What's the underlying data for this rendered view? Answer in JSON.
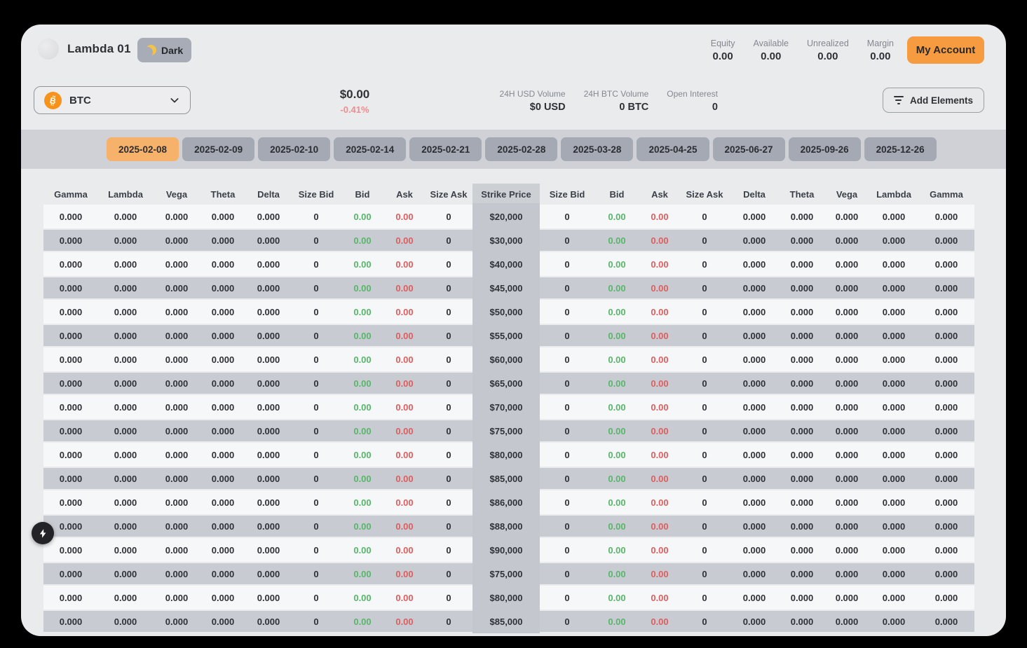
{
  "header": {
    "logo_title": "Lambda 01",
    "theme_toggle": {
      "label": "Dark",
      "icon": "moon-icon"
    },
    "stats": [
      {
        "label": "Equity",
        "value": "0.00"
      },
      {
        "label": "Available",
        "value": "0.00"
      },
      {
        "label": "Unrealized",
        "value": "0.00"
      },
      {
        "label": "Margin",
        "value": "0.00"
      }
    ],
    "account_button_label": "My Account"
  },
  "toolbar": {
    "asset_select": {
      "value": "BTC",
      "icon": "bitcoin-icon",
      "chevron": "chevron-down-icon"
    },
    "price": {
      "value": "$0.00",
      "change": "-0.41%"
    },
    "market_stats": [
      {
        "label": "24H USD Volume",
        "value": "$0 USD"
      },
      {
        "label": "24H BTC Volume",
        "value": "0 BTC"
      },
      {
        "label": "Open Interest",
        "value": "0"
      }
    ],
    "add_elements_button": {
      "label": "Add Elements",
      "icon": "filter-icon"
    }
  },
  "expiry_tabs": {
    "selected": "2025-02-08",
    "items": [
      "2025-02-08",
      "2025-02-09",
      "2025-02-10",
      "2025-02-14",
      "2025-02-21",
      "2025-02-28",
      "2025-03-28",
      "2025-04-25",
      "2025-06-27",
      "2025-09-26",
      "2025-12-26"
    ]
  },
  "options_table": {
    "left_headers": [
      "Gamma",
      "Lambda",
      "Vega",
      "Theta",
      "Delta",
      "Size Bid",
      "Bid",
      "Ask",
      "Size Ask"
    ],
    "center_header": "Strike Price",
    "right_headers": [
      "Size Bid",
      "Bid",
      "Ask",
      "Size Ask",
      "Delta",
      "Theta",
      "Vega",
      "Lambda",
      "Gamma"
    ],
    "rows": [
      {
        "strike": "$20,000",
        "left": [
          "0.000",
          "0.000",
          "0.000",
          "0.000",
          "0.000",
          "0",
          "0.00",
          "0.00",
          "0"
        ],
        "right": [
          "0",
          "0.00",
          "0.00",
          "0",
          "0.000",
          "0.000",
          "0.000",
          "0.000",
          "0.000"
        ]
      },
      {
        "strike": "$30,000",
        "left": [
          "0.000",
          "0.000",
          "0.000",
          "0.000",
          "0.000",
          "0",
          "0.00",
          "0.00",
          "0"
        ],
        "right": [
          "0",
          "0.00",
          "0.00",
          "0",
          "0.000",
          "0.000",
          "0.000",
          "0.000",
          "0.000"
        ]
      },
      {
        "strike": "$40,000",
        "left": [
          "0.000",
          "0.000",
          "0.000",
          "0.000",
          "0.000",
          "0",
          "0.00",
          "0.00",
          "0"
        ],
        "right": [
          "0",
          "0.00",
          "0.00",
          "0",
          "0.000",
          "0.000",
          "0.000",
          "0.000",
          "0.000"
        ]
      },
      {
        "strike": "$45,000",
        "left": [
          "0.000",
          "0.000",
          "0.000",
          "0.000",
          "0.000",
          "0",
          "0.00",
          "0.00",
          "0"
        ],
        "right": [
          "0",
          "0.00",
          "0.00",
          "0",
          "0.000",
          "0.000",
          "0.000",
          "0.000",
          "0.000"
        ]
      },
      {
        "strike": "$50,000",
        "left": [
          "0.000",
          "0.000",
          "0.000",
          "0.000",
          "0.000",
          "0",
          "0.00",
          "0.00",
          "0"
        ],
        "right": [
          "0",
          "0.00",
          "0.00",
          "0",
          "0.000",
          "0.000",
          "0.000",
          "0.000",
          "0.000"
        ]
      },
      {
        "strike": "$55,000",
        "left": [
          "0.000",
          "0.000",
          "0.000",
          "0.000",
          "0.000",
          "0",
          "0.00",
          "0.00",
          "0"
        ],
        "right": [
          "0",
          "0.00",
          "0.00",
          "0",
          "0.000",
          "0.000",
          "0.000",
          "0.000",
          "0.000"
        ]
      },
      {
        "strike": "$60,000",
        "left": [
          "0.000",
          "0.000",
          "0.000",
          "0.000",
          "0.000",
          "0",
          "0.00",
          "0.00",
          "0"
        ],
        "right": [
          "0",
          "0.00",
          "0.00",
          "0",
          "0.000",
          "0.000",
          "0.000",
          "0.000",
          "0.000"
        ]
      },
      {
        "strike": "$65,000",
        "left": [
          "0.000",
          "0.000",
          "0.000",
          "0.000",
          "0.000",
          "0",
          "0.00",
          "0.00",
          "0"
        ],
        "right": [
          "0",
          "0.00",
          "0.00",
          "0",
          "0.000",
          "0.000",
          "0.000",
          "0.000",
          "0.000"
        ]
      },
      {
        "strike": "$70,000",
        "left": [
          "0.000",
          "0.000",
          "0.000",
          "0.000",
          "0.000",
          "0",
          "0.00",
          "0.00",
          "0"
        ],
        "right": [
          "0",
          "0.00",
          "0.00",
          "0",
          "0.000",
          "0.000",
          "0.000",
          "0.000",
          "0.000"
        ]
      },
      {
        "strike": "$75,000",
        "left": [
          "0.000",
          "0.000",
          "0.000",
          "0.000",
          "0.000",
          "0",
          "0.00",
          "0.00",
          "0"
        ],
        "right": [
          "0",
          "0.00",
          "0.00",
          "0",
          "0.000",
          "0.000",
          "0.000",
          "0.000",
          "0.000"
        ]
      },
      {
        "strike": "$80,000",
        "left": [
          "0.000",
          "0.000",
          "0.000",
          "0.000",
          "0.000",
          "0",
          "0.00",
          "0.00",
          "0"
        ],
        "right": [
          "0",
          "0.00",
          "0.00",
          "0",
          "0.000",
          "0.000",
          "0.000",
          "0.000",
          "0.000"
        ]
      },
      {
        "strike": "$85,000",
        "left": [
          "0.000",
          "0.000",
          "0.000",
          "0.000",
          "0.000",
          "0",
          "0.00",
          "0.00",
          "0"
        ],
        "right": [
          "0",
          "0.00",
          "0.00",
          "0",
          "0.000",
          "0.000",
          "0.000",
          "0.000",
          "0.000"
        ]
      },
      {
        "strike": "$86,000",
        "left": [
          "0.000",
          "0.000",
          "0.000",
          "0.000",
          "0.000",
          "0",
          "0.00",
          "0.00",
          "0"
        ],
        "right": [
          "0",
          "0.00",
          "0.00",
          "0",
          "0.000",
          "0.000",
          "0.000",
          "0.000",
          "0.000"
        ]
      },
      {
        "strike": "$88,000",
        "left": [
          "0.000",
          "0.000",
          "0.000",
          "0.000",
          "0.000",
          "0",
          "0.00",
          "0.00",
          "0"
        ],
        "right": [
          "0",
          "0.00",
          "0.00",
          "0",
          "0.000",
          "0.000",
          "0.000",
          "0.000",
          "0.000"
        ]
      },
      {
        "strike": "$90,000",
        "left": [
          "0.000",
          "0.000",
          "0.000",
          "0.000",
          "0.000",
          "0",
          "0.00",
          "0.00",
          "0"
        ],
        "right": [
          "0",
          "0.00",
          "0.00",
          "0",
          "0.000",
          "0.000",
          "0.000",
          "0.000",
          "0.000"
        ]
      },
      {
        "strike": "$75,000",
        "left": [
          "0.000",
          "0.000",
          "0.000",
          "0.000",
          "0.000",
          "0",
          "0.00",
          "0.00",
          "0"
        ],
        "right": [
          "0",
          "0.00",
          "0.00",
          "0",
          "0.000",
          "0.000",
          "0.000",
          "0.000",
          "0.000"
        ]
      },
      {
        "strike": "$80,000",
        "left": [
          "0.000",
          "0.000",
          "0.000",
          "0.000",
          "0.000",
          "0",
          "0.00",
          "0.00",
          "0"
        ],
        "right": [
          "0",
          "0.00",
          "0.00",
          "0",
          "0.000",
          "0.000",
          "0.000",
          "0.000",
          "0.000"
        ]
      },
      {
        "strike": "$85,000",
        "left": [
          "0.000",
          "0.000",
          "0.000",
          "0.000",
          "0.000",
          "0",
          "0.00",
          "0.00",
          "0"
        ],
        "right": [
          "0",
          "0.00",
          "0.00",
          "0",
          "0.000",
          "0.000",
          "0.000",
          "0.000",
          "0.000"
        ]
      }
    ]
  },
  "fab": {
    "icon": "lightning-icon"
  },
  "colors": {
    "accent_orange": "#f79b40",
    "selected_tab_orange": "#f6b16b",
    "bid_green": "#57b669",
    "ask_red": "#dd5e5e",
    "change_pink": "#ef8d8d",
    "row_light": "#f6f7f9",
    "row_dark": "#c8ccd2",
    "strike_column": "#c4c8ce",
    "bitcoin_orange": "#f7931a"
  }
}
